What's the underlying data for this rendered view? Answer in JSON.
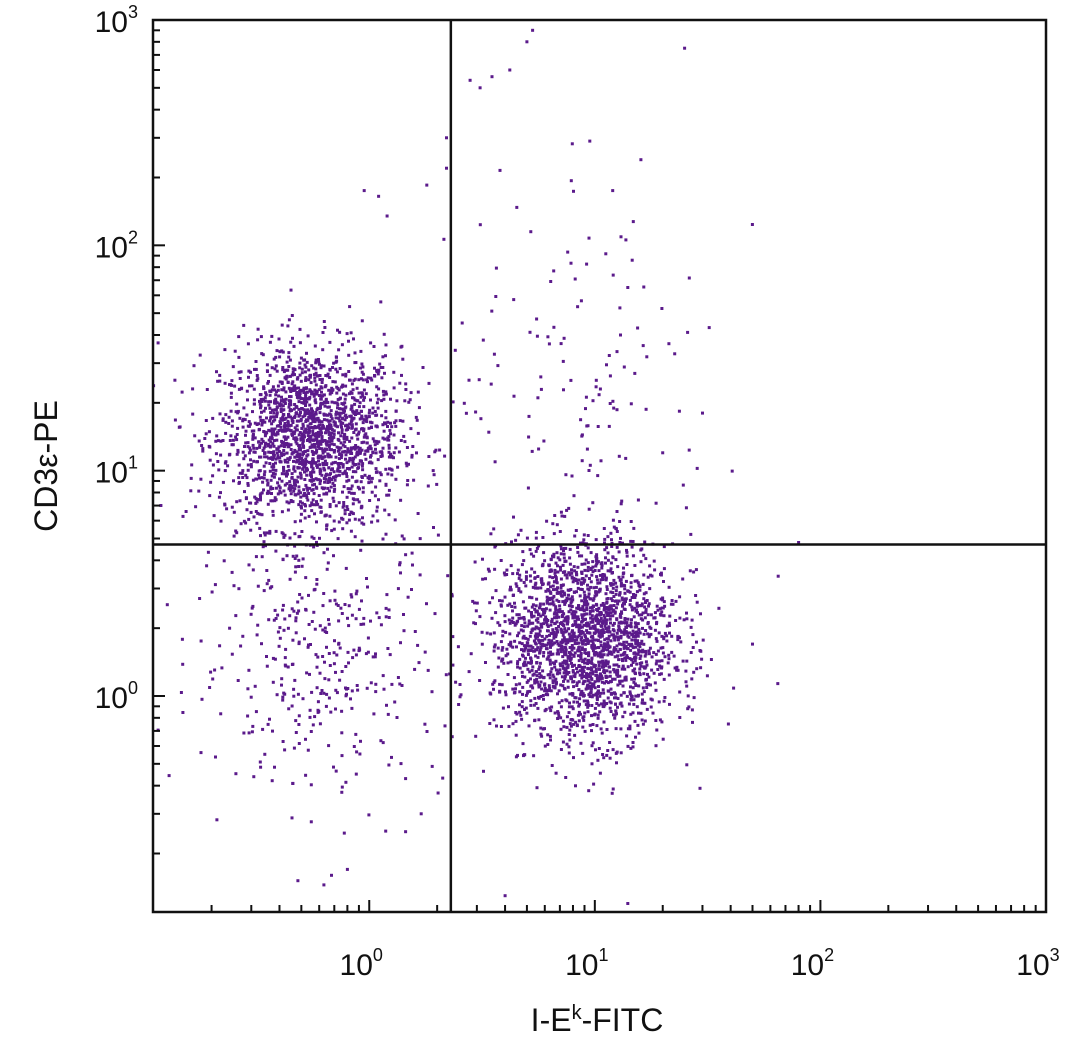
{
  "chart_data": {
    "type": "scatter",
    "title": "",
    "xlabel": {
      "base": "I-E",
      "sup": "k",
      "suffix": "-FITC"
    },
    "ylabel": "CD3ε-PE",
    "x_scale": "log",
    "y_scale": "log",
    "xlim": [
      0.11,
      1000
    ],
    "ylim": [
      0.11,
      1000
    ],
    "x_ticks": [
      {
        "value": 1,
        "base": "10",
        "exp": "0"
      },
      {
        "value": 10,
        "base": "10",
        "exp": "1"
      },
      {
        "value": 100,
        "base": "10",
        "exp": "2"
      },
      {
        "value": 1000,
        "base": "10",
        "exp": "3"
      }
    ],
    "y_ticks": [
      {
        "value": 1,
        "base": "10",
        "exp": "0"
      },
      {
        "value": 10,
        "base": "10",
        "exp": "1"
      },
      {
        "value": 100,
        "base": "10",
        "exp": "2"
      },
      {
        "value": 1000,
        "base": "10",
        "exp": "3"
      }
    ],
    "quadrant_gates": {
      "x": 2.3,
      "y": 4.7
    },
    "point_color": "#5b1a8b",
    "grid": false,
    "legend": "none",
    "populations": [
      {
        "name_visible": false,
        "center": [
          0.55,
          14
        ],
        "spread_log10": [
          0.2,
          0.2
        ],
        "count": 1900,
        "note_visible": false
      },
      {
        "name_visible": false,
        "center": [
          9,
          1.8
        ],
        "spread_log10": [
          0.2,
          0.22
        ],
        "count": 2200,
        "note_visible": false
      },
      {
        "name_visible": false,
        "center": [
          0.6,
          1.5
        ],
        "spread_log10": [
          0.28,
          0.3
        ],
        "count": 380,
        "note_visible": false
      },
      {
        "name_visible": false,
        "center": [
          9,
          25
        ],
        "spread_log10": [
          0.3,
          0.4
        ],
        "count": 120,
        "note_visible": false
      }
    ],
    "sample_points": [
      [
        5.3,
        900
      ],
      [
        5.0,
        800
      ],
      [
        2.8,
        540
      ],
      [
        3.1,
        500
      ],
      [
        3.5,
        560
      ],
      [
        4.2,
        600
      ],
      [
        25,
        750
      ],
      [
        9.5,
        290
      ],
      [
        16,
        240
      ],
      [
        12,
        175
      ],
      [
        3.8,
        215
      ],
      [
        5.2,
        115
      ],
      [
        1.8,
        185
      ],
      [
        1.1,
        165
      ],
      [
        1.2,
        135
      ],
      [
        0.95,
        175
      ],
      [
        2.2,
        300
      ],
      [
        2.2,
        220
      ],
      [
        14,
        65
      ],
      [
        13,
        40
      ],
      [
        17,
        32
      ],
      [
        30,
        18
      ],
      [
        20,
        12
      ],
      [
        80,
        4.8
      ],
      [
        50,
        1.7
      ],
      [
        65,
        3.4
      ],
      [
        0.68,
        0.16
      ],
      [
        0.8,
        0.17
      ],
      [
        1.45,
        0.25
      ],
      [
        1.7,
        0.3
      ],
      [
        4,
        0.13
      ],
      [
        14,
        0.12
      ]
    ]
  }
}
